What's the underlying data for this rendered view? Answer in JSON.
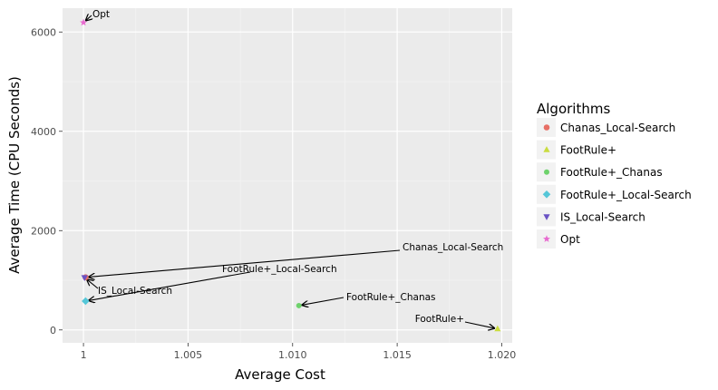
{
  "chart_data": {
    "type": "scatter",
    "xlabel": "Average Cost",
    "ylabel": "Average Time (CPU Seconds)",
    "xlim": [
      0.999,
      1.0205
    ],
    "ylim": [
      -260,
      6480
    ],
    "x_ticks": [
      1.0,
      1.005,
      1.01,
      1.015,
      1.02
    ],
    "x_tick_labels": [
      "1",
      "1.005",
      "1.010",
      "1.015",
      "1.020"
    ],
    "y_ticks": [
      0,
      2000,
      4000,
      6000
    ],
    "y_tick_labels": [
      "0",
      "2000",
      "4000",
      "6000"
    ],
    "grid": true,
    "background": "#ebebeb",
    "legend": {
      "title": "Algorithms",
      "placement": "right"
    },
    "series": [
      {
        "name": "Chanas_Local-Search",
        "x": 1.0001,
        "y": 1060,
        "color": "#e76f65",
        "marker": "circle",
        "annotation": "Chanas_Local-Search"
      },
      {
        "name": "FootRule+",
        "x": 1.0198,
        "y": 20,
        "color": "#cadc3f",
        "marker": "triangle-up",
        "annotation": "FootRule+"
      },
      {
        "name": "FootRule+_Chanas",
        "x": 1.0103,
        "y": 490,
        "color": "#6ed26c",
        "marker": "circle-small",
        "annotation": "FootRule+_Chanas"
      },
      {
        "name": "FootRule+_Local-Search",
        "x": 1.0001,
        "y": 580,
        "color": "#55c7d8",
        "marker": "diamond",
        "annotation": "FootRule+_Local-Search"
      },
      {
        "name": "IS_Local-Search",
        "x": 1.00005,
        "y": 1055,
        "color": "#6a53c4",
        "marker": "triangle-down",
        "annotation": "IS_Local-Search"
      },
      {
        "name": "Opt",
        "x": 1.0,
        "y": 6190,
        "color": "#e86bd0",
        "marker": "star",
        "annotation": "Opt"
      }
    ]
  }
}
